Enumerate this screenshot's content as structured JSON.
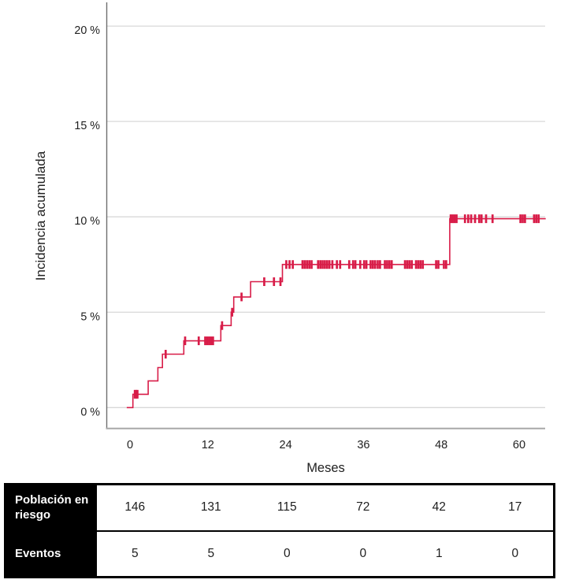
{
  "colors": {
    "curve": "#D81C48",
    "grid": "#D8D8D8",
    "y_axis": "#6E6E6E",
    "x_axis": "#ACACAC",
    "text": "#212121",
    "table_label_bg": "#000000",
    "table_label_text": "#FFFFFF"
  },
  "chart_data": {
    "type": "line",
    "subtype": "step-cumulative-incidence",
    "xlabel": "Meses",
    "ylabel": "Incidencia acumulada",
    "xlim": [
      -0.5,
      64.2
    ],
    "ylim": [
      0,
      21.2
    ],
    "grid": "horizontal",
    "legend": "none",
    "x_tick_values": [
      0,
      12,
      24,
      36,
      48,
      60
    ],
    "x_tick_labels": [
      "0",
      "12",
      "24",
      "36",
      "48",
      "60"
    ],
    "y_tick_values": [
      0,
      5,
      10,
      15,
      20
    ],
    "y_tick_labels": [
      "0 %",
      "5 %",
      "10 %",
      "15 %",
      "20 %"
    ],
    "series": [
      {
        "name": "Incidencia acumulada",
        "color": "#D81C48",
        "start": [
          -0.5,
          0
        ],
        "steps": [
          [
            0.45,
            0.7
          ],
          [
            2.8,
            1.4
          ],
          [
            4.3,
            2.1
          ],
          [
            5.0,
            2.8
          ],
          [
            8.3,
            3.5
          ],
          [
            14.0,
            4.3
          ],
          [
            15.6,
            5.0
          ],
          [
            16.0,
            5.8
          ],
          [
            18.6,
            6.6
          ],
          [
            23.5,
            7.5
          ],
          [
            49.3,
            9.9
          ]
        ],
        "end_x": 64.1,
        "censor_marks_months": [
          0.75,
          0.95,
          1.15,
          5.5,
          8.5,
          10.6,
          11.6,
          11.9,
          12.2,
          12.5,
          12.8,
          14.2,
          15.75,
          17.2,
          20.7,
          22.2,
          23.2,
          24.1,
          24.6,
          25.1,
          26.6,
          26.95,
          27.3,
          27.65,
          28.0,
          29.0,
          29.35,
          29.7,
          30.05,
          30.4,
          30.75,
          31.2,
          31.9,
          32.4,
          33.8,
          34.4,
          34.75,
          35.5,
          36.1,
          36.45,
          37.1,
          37.45,
          37.8,
          38.2,
          38.55,
          39.3,
          39.65,
          40.0,
          40.35,
          42.4,
          42.75,
          43.1,
          43.45,
          44.1,
          44.45,
          44.8,
          45.15,
          47.2,
          47.55,
          48.4,
          48.75,
          49.45,
          49.75,
          50.05,
          50.35,
          51.65,
          52.15,
          52.6,
          53.2,
          53.85,
          54.2,
          54.9,
          55.9,
          60.2,
          60.55,
          60.9,
          62.3,
          62.65,
          63.0
        ]
      }
    ]
  },
  "risk_table": {
    "rows": [
      {
        "label": "Población en riesgo",
        "values": [
          "146",
          "131",
          "115",
          "72",
          "42",
          "17"
        ]
      },
      {
        "label": "Eventos",
        "values": [
          "5",
          "5",
          "0",
          "0",
          "1",
          "0"
        ]
      }
    ]
  }
}
